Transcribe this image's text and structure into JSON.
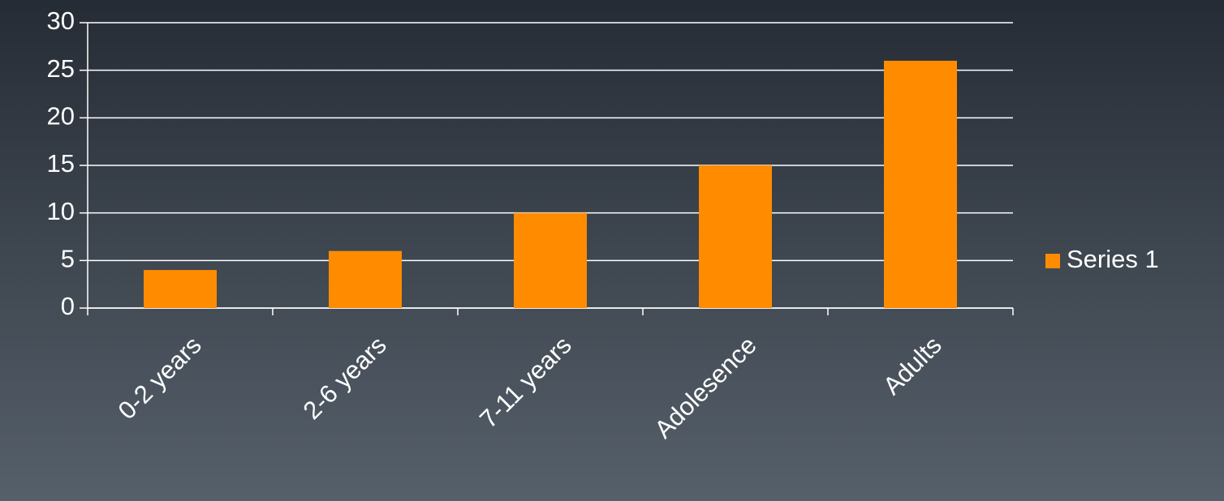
{
  "chart_data": {
    "type": "bar",
    "categories": [
      "0-2 years",
      "2-6 years",
      "7-11 years",
      "Adolesence",
      "Adults"
    ],
    "series": [
      {
        "name": "Series 1",
        "color": "#ff8c00",
        "values": [
          4,
          6,
          10,
          15,
          26
        ]
      }
    ],
    "ylim": [
      0,
      30
    ],
    "yticks": [
      0,
      5,
      10,
      15,
      20,
      25,
      30
    ],
    "grid": true,
    "legend": "right"
  }
}
